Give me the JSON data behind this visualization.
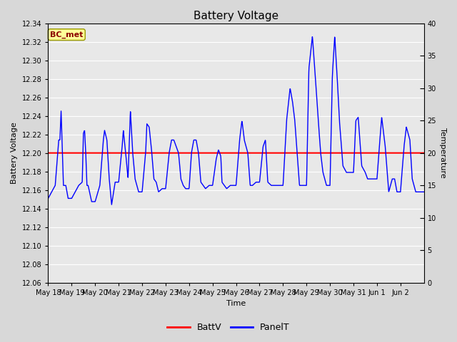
{
  "title": "Battery Voltage",
  "xlabel": "Time",
  "ylabel_left": "Battery Voltage",
  "ylabel_right": "Temperature",
  "legend_label": "BC_met",
  "series_labels": [
    "BattV",
    "PanelT"
  ],
  "ylim_left": [
    12.06,
    12.34
  ],
  "ylim_right": [
    0,
    40
  ],
  "batt_v": 12.2,
  "background_color": "#d8d8d8",
  "plot_bg_color": "#e8e8e8",
  "grid_color": "white",
  "batt_line_color": "red",
  "panel_line_color": "blue",
  "date_labels": [
    "May 18",
    "May 19",
    "May 20",
    "May 21",
    "May 22",
    "May 23",
    "May 24",
    "May 25",
    "May 26",
    "May 27",
    "May 28",
    "May 29",
    "May 30",
    "May 31",
    "Jun 1",
    "Jun 2"
  ],
  "left_yticks": [
    12.06,
    12.08,
    12.1,
    12.12,
    12.14,
    12.16,
    12.18,
    12.2,
    12.22,
    12.24,
    12.26,
    12.28,
    12.3,
    12.32,
    12.34
  ],
  "right_yticks": [
    0,
    5,
    10,
    15,
    20,
    25,
    30,
    35,
    40
  ]
}
